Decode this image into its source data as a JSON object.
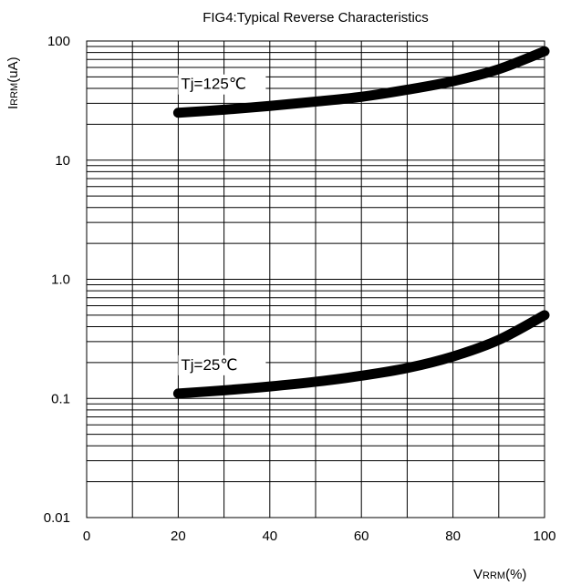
{
  "chart_data": {
    "type": "line",
    "title": "FIG4:Typical Reverse Characteristics",
    "ylabel": {
      "main": "I",
      "sub": "RRM",
      "unit": "(uA)"
    },
    "xlabel": {
      "main": "V",
      "sub": "RRM",
      "unit": "(%)"
    },
    "x_ticks": [
      "0",
      "20",
      "40",
      "60",
      "80",
      "100"
    ],
    "y_ticks": [
      "0.01",
      "0.1",
      "1.0",
      "10",
      "100"
    ],
    "xlim": [
      0,
      100
    ],
    "ylim": [
      0.01,
      100
    ],
    "yscale": "log",
    "grid": true,
    "series": [
      {
        "name": "Tj=125℃",
        "x": [
          20,
          30,
          40,
          50,
          60,
          70,
          80,
          90,
          100
        ],
        "y": [
          25,
          26.5,
          28.5,
          31,
          34,
          39,
          46,
          58,
          82
        ]
      },
      {
        "name": "Tj=25℃",
        "x": [
          20,
          30,
          40,
          50,
          60,
          70,
          80,
          90,
          100
        ],
        "y": [
          0.11,
          0.117,
          0.126,
          0.138,
          0.155,
          0.18,
          0.225,
          0.31,
          0.5
        ]
      }
    ]
  }
}
